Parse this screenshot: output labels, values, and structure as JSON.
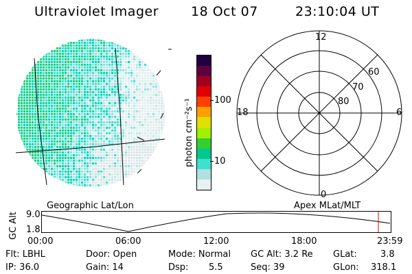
{
  "header": {
    "instrument": "Ultraviolet Imager",
    "date": "18 Oct 07",
    "time": "23:10:04 UT"
  },
  "image_panel": {
    "label": "Geographic Lat/Lon"
  },
  "colorbar": {
    "unit_label": "photon cm⁻²s⁻¹",
    "ticks": [
      "100",
      "10"
    ],
    "colors": [
      "#e8f0f0",
      "#b0e0e0",
      "#40e0d0",
      "#00c890",
      "#30d030",
      "#a0f000",
      "#e0e000",
      "#ffa000",
      "#ff4000",
      "#e00000",
      "#a00020",
      "#600040",
      "#200040"
    ]
  },
  "polar_panel": {
    "label": "Apex MLat/MLT",
    "mlt_labels": {
      "top": "12",
      "bottom": "0",
      "left": "18",
      "right": "6"
    },
    "mlat_labels": [
      "60",
      "70",
      "80"
    ]
  },
  "altitude_plot": {
    "ylabel": "GC Alt",
    "yticks": [
      "9.0",
      "1.8"
    ],
    "xticks": [
      "00:00",
      "06:00",
      "12:00",
      "18:00",
      "23:59"
    ],
    "marker_color": "#e00000"
  },
  "info": {
    "flt": "Flt: LBHL",
    "door": "Door: Open",
    "mode": "Mode: Normal",
    "gcalt": "GC Alt: 3.2 Re",
    "glat_label": "GLat:",
    "glat_value": "3.8",
    "ip": "IP: 36.0",
    "gain": "Gain: 14",
    "dsp_label": "Dsp:",
    "dsp_value": "5.5",
    "seq": "Seq: 39",
    "glon_label": "GLon:",
    "glon_value": "318.1"
  }
}
